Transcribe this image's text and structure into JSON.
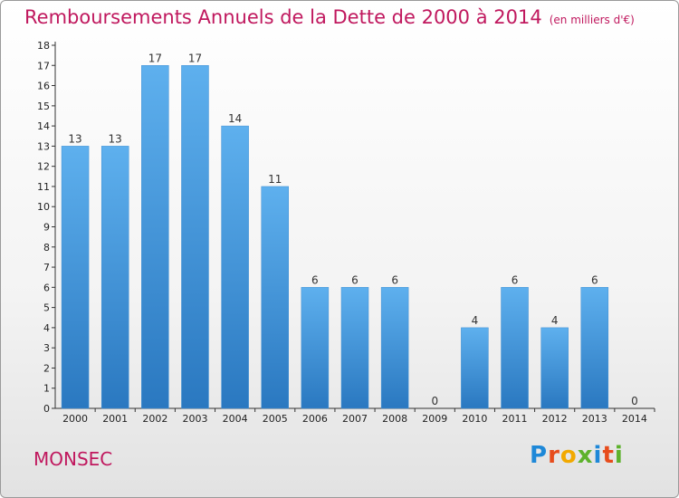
{
  "header": {
    "title": "Remboursements Annuels de la Dette de 2000 à 2014",
    "unit": "(en milliers d'€)"
  },
  "footer": {
    "town": "MONSEC",
    "logo_letters": [
      "P",
      "r",
      "o",
      "x",
      "i",
      "t",
      "i"
    ],
    "logo_colors": [
      "#1e88d8",
      "#e74c1c",
      "#f2a900",
      "#5db22c",
      "#1e88d8",
      "#e74c1c",
      "#5db22c"
    ]
  },
  "colors": {
    "bar_top": "#5eb0ee",
    "bar_bottom": "#2a78c0",
    "title": "#c0185e",
    "axis": "#333333"
  },
  "chart_data": {
    "type": "bar",
    "title": "Remboursements Annuels de la Dette de 2000 à 2014",
    "subtitle": "(en milliers d'€)",
    "categories": [
      "2000",
      "2001",
      "2002",
      "2003",
      "2004",
      "2005",
      "2006",
      "2007",
      "2008",
      "2009",
      "2010",
      "2011",
      "2012",
      "2013",
      "2014"
    ],
    "values": [
      13,
      13,
      17,
      17,
      14,
      11,
      6,
      6,
      6,
      0,
      4,
      6,
      4,
      6,
      0
    ],
    "data_labels": [
      "13",
      "13",
      "17",
      "17",
      "14",
      "11",
      "6",
      "6",
      "6",
      "0",
      "4",
      "6",
      "4",
      "6",
      "0"
    ],
    "yticks": [
      "0",
      "1",
      "2",
      "3",
      "4",
      "5",
      "6",
      "7",
      "8",
      "9",
      "10",
      "11",
      "12",
      "13",
      "14",
      "15",
      "16",
      "17",
      "18"
    ],
    "ylim": [
      0,
      18
    ],
    "xlabel": "",
    "ylabel": "",
    "grid": false
  }
}
